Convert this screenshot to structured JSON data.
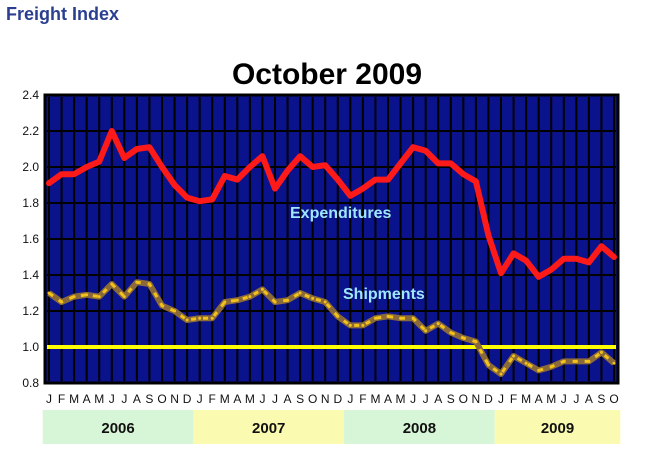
{
  "header": {
    "title": "Freight Index"
  },
  "chart_data": {
    "type": "line",
    "title": "October 2009",
    "ylim": [
      0.8,
      2.4
    ],
    "yticks": [
      "2.4",
      "2.2",
      "2.0",
      "1.8",
      "1.6",
      "1.4",
      "1.2",
      "1.0",
      "0.8"
    ],
    "grid": true,
    "month_labels": [
      "J",
      "F",
      "M",
      "A",
      "M",
      "J",
      "J",
      "A",
      "S",
      "O",
      "N",
      "D",
      "J",
      "F",
      "M",
      "A",
      "M",
      "J",
      "J",
      "A",
      "S",
      "O",
      "N",
      "D",
      "J",
      "F",
      "M",
      "A",
      "M",
      "J",
      "J",
      "A",
      "S",
      "O",
      "N",
      "D",
      "J",
      "F",
      "M",
      "A",
      "M",
      "J",
      "J",
      "A",
      "S",
      "O"
    ],
    "years": [
      {
        "label": "2006",
        "months": 12,
        "color": "#d7f5d7"
      },
      {
        "label": "2007",
        "months": 12,
        "color": "#fafab0"
      },
      {
        "label": "2008",
        "months": 12,
        "color": "#d7f5d7"
      },
      {
        "label": "2009",
        "months": 10,
        "color": "#fafab0"
      }
    ],
    "reference_line": {
      "value": 1.0,
      "color": "#ffff00"
    },
    "series": [
      {
        "name": "Expenditures",
        "color": "#ff1a1a",
        "values": [
          1.91,
          1.96,
          1.96,
          2.0,
          2.03,
          2.2,
          2.05,
          2.1,
          2.11,
          2.0,
          1.9,
          1.83,
          1.81,
          1.82,
          1.95,
          1.93,
          2.0,
          2.06,
          1.88,
          1.98,
          2.06,
          2.0,
          2.01,
          1.93,
          1.84,
          1.88,
          1.93,
          1.93,
          2.02,
          2.11,
          2.09,
          2.02,
          2.02,
          1.96,
          1.92,
          1.62,
          1.41,
          1.52,
          1.48,
          1.39,
          1.43,
          1.49,
          1.49,
          1.47,
          1.56,
          1.5
        ]
      },
      {
        "name": "Shipments",
        "color": "#8b6a3a",
        "dash_color": "#f2c21a",
        "values": [
          1.3,
          1.25,
          1.28,
          1.29,
          1.28,
          1.35,
          1.28,
          1.36,
          1.35,
          1.23,
          1.2,
          1.15,
          1.16,
          1.16,
          1.25,
          1.26,
          1.28,
          1.32,
          1.25,
          1.26,
          1.3,
          1.27,
          1.25,
          1.17,
          1.12,
          1.12,
          1.16,
          1.17,
          1.16,
          1.16,
          1.09,
          1.13,
          1.08,
          1.05,
          1.03,
          0.9,
          0.85,
          0.95,
          0.91,
          0.87,
          0.89,
          0.92,
          0.92,
          0.92,
          0.97,
          0.91
        ]
      }
    ]
  }
}
